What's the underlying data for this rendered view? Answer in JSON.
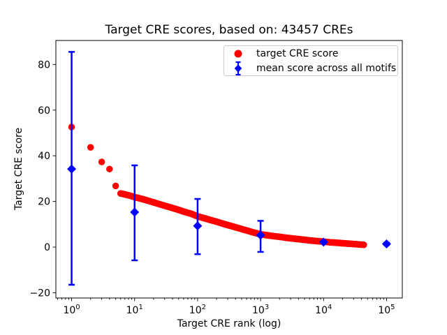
{
  "title": "Target CRE scores, based on: 43457 CREs",
  "axes": {
    "xlabel": "Target CRE rank (log)",
    "ylabel": "Target CRE score",
    "x_tick_base": "10",
    "x_ticks": [
      {
        "value": 1,
        "exp": "0"
      },
      {
        "value": 10,
        "exp": "1"
      },
      {
        "value": 100,
        "exp": "2"
      },
      {
        "value": 1000,
        "exp": "3"
      },
      {
        "value": 10000,
        "exp": "4"
      },
      {
        "value": 100000,
        "exp": "5"
      }
    ],
    "y_ticks": [
      {
        "value": -20,
        "label": "−20"
      },
      {
        "value": 0,
        "label": "0"
      },
      {
        "value": 20,
        "label": "20"
      },
      {
        "value": 40,
        "label": "40"
      },
      {
        "value": 60,
        "label": "60"
      },
      {
        "value": 80,
        "label": "80"
      }
    ],
    "x_log10_range": [
      -0.25,
      5.25
    ],
    "y_range": [
      -22.3,
      90.5
    ]
  },
  "legend": {
    "items": [
      {
        "label": "target CRE score",
        "marker": "circle",
        "color": "#ff0000"
      },
      {
        "label": "mean score across all motifs",
        "marker": "diamond-errorbar",
        "color": "#0000ff"
      }
    ]
  },
  "chart_data": {
    "type": "scatter",
    "title": "Target CRE scores, based on: 43457 CREs",
    "xlabel": "Target CRE rank (log)",
    "ylabel": "Target CRE score",
    "x_scale": "log",
    "xlim": [
      0.56,
      177828
    ],
    "ylim": [
      -22.3,
      90.5
    ],
    "grid": false,
    "legend_position": "upper right",
    "n_cres": 43457,
    "series": [
      {
        "name": "target CRE score",
        "type": "scatter",
        "marker": "circle",
        "color": "#ff0000",
        "band_start_rank": 6,
        "points": [
          [
            1,
            52.6
          ],
          [
            2,
            43.7
          ],
          [
            3,
            37.3
          ],
          [
            4,
            34.2
          ],
          [
            5,
            26.8
          ],
          [
            6,
            23.5
          ],
          [
            7,
            23.1
          ],
          [
            8,
            22.7
          ],
          [
            9,
            22.3
          ],
          [
            10,
            21.9
          ],
          [
            13,
            21.1
          ],
          [
            16,
            20.4
          ],
          [
            20,
            19.6
          ],
          [
            25,
            18.8
          ],
          [
            32,
            17.9
          ],
          [
            40,
            17.1
          ],
          [
            50,
            16.3
          ],
          [
            63,
            15.4
          ],
          [
            79,
            14.6
          ],
          [
            100,
            13.5
          ],
          [
            126,
            12.7
          ],
          [
            158,
            11.9
          ],
          [
            200,
            11.1
          ],
          [
            251,
            10.3
          ],
          [
            316,
            9.5
          ],
          [
            398,
            8.7
          ],
          [
            501,
            7.9
          ],
          [
            631,
            7.1
          ],
          [
            794,
            6.3
          ],
          [
            1000,
            5.6
          ],
          [
            1259,
            5.2
          ],
          [
            1585,
            4.8
          ],
          [
            2000,
            4.5
          ],
          [
            2512,
            4.1
          ],
          [
            3162,
            3.8
          ],
          [
            3981,
            3.5
          ],
          [
            5012,
            3.2
          ],
          [
            6310,
            2.9
          ],
          [
            7943,
            2.6
          ],
          [
            10000,
            2.4
          ],
          [
            12589,
            2.1
          ],
          [
            15849,
            1.9
          ],
          [
            19953,
            1.7
          ],
          [
            25119,
            1.5
          ],
          [
            31623,
            1.3
          ],
          [
            43457,
            1.0
          ]
        ]
      },
      {
        "name": "mean score across all motifs",
        "type": "errorbar",
        "marker": "diamond",
        "color": "#0000ff",
        "points": [
          {
            "x": 1,
            "mean": 34.2,
            "lo": -16.5,
            "hi": 85.5
          },
          {
            "x": 10,
            "mean": 15.3,
            "lo": -5.8,
            "hi": 35.8
          },
          {
            "x": 100,
            "mean": 9.3,
            "lo": -3.1,
            "hi": 21.1
          },
          {
            "x": 1000,
            "mean": 5.2,
            "lo": -2.1,
            "hi": 11.5
          },
          {
            "x": 10000,
            "mean": 2.2,
            "lo": 1.6,
            "hi": 2.8
          },
          {
            "x": 100000,
            "mean": 1.4,
            "lo": 0.9,
            "hi": 1.9
          }
        ]
      }
    ]
  }
}
